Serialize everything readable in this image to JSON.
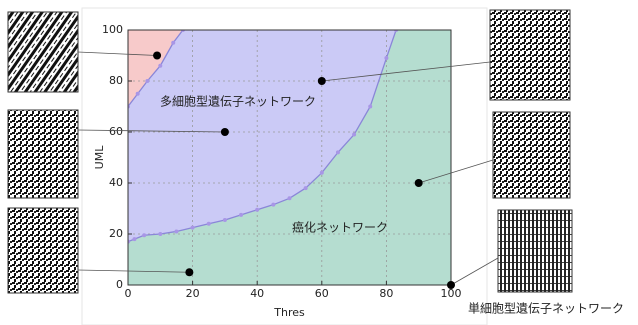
{
  "chart_data": {
    "type": "line",
    "xlabel": "Thres",
    "ylabel": "UML",
    "xlim": [
      0,
      100
    ],
    "ylim": [
      0,
      100
    ],
    "xticks": [
      0,
      20,
      40,
      60,
      80,
      100
    ],
    "yticks": [
      0,
      20,
      40,
      60,
      80,
      100
    ],
    "grid": true,
    "region_colors": [
      "#b5ddd0",
      "#cbcaf6",
      "#f7caca"
    ],
    "series": [
      {
        "color": "#8a86d8",
        "x": [
          0,
          2,
          5,
          10,
          15,
          20,
          25,
          30,
          35,
          40,
          45,
          50,
          55,
          60,
          65,
          70,
          75,
          80,
          83
        ],
        "values": [
          17,
          18,
          19.5,
          20,
          21,
          22.5,
          24,
          25.5,
          27.5,
          29.5,
          31.5,
          34,
          38,
          44,
          52,
          59,
          70,
          89,
          100
        ]
      },
      {
        "color": "#8a86d8",
        "x": [
          0,
          3,
          6,
          10,
          14,
          17
        ],
        "values": [
          70,
          75,
          80,
          86,
          95,
          100
        ]
      }
    ],
    "points": {
      "color": "#000000",
      "x": [
        9,
        60,
        30,
        90,
        19,
        100
      ],
      "values": [
        90,
        80,
        60,
        40,
        5,
        0
      ]
    },
    "annotations": [
      "多細胞型遺伝子ネットワーク",
      "癌化ネットワーク",
      "単細胞型遺伝子ネットワーク"
    ]
  }
}
